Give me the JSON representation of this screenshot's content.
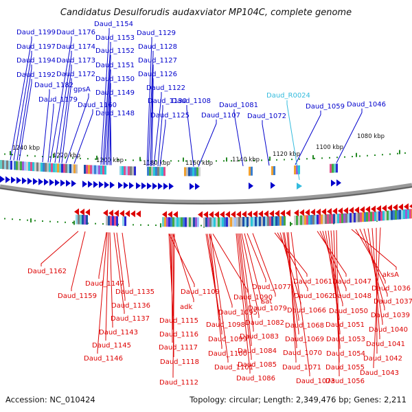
{
  "title": "Candidatus Desulforudis audaxviator MP104C, complete genome",
  "footer": {
    "accession": "Accession: NC_010424",
    "topology": "Topology: circular; Length: 2,349,476 bp; Genes: 2,211"
  },
  "colors": {
    "forward": "#0000cc",
    "reverse": "#dd0000",
    "rna": "#33bbdd",
    "backbone": "#888888",
    "tick": "#228822"
  },
  "ticks": [
    "1240 kbp",
    "1220 kbp",
    "1200 kbp",
    "1180 kbp",
    "1160 kbp",
    "1140 kbp",
    "1120 kbp",
    "1100 kbp",
    "1080 kbp"
  ],
  "forward_labels": [
    "Daud_1199",
    "Daud_1197",
    "Daud_1194",
    "Daud_1192",
    "Daud_1182",
    "Daud_1179",
    "Daud_1176",
    "Daud_1174",
    "Daud_1173",
    "Daud_1172",
    "gpsA",
    "Daud_1160",
    "Daud_1154",
    "Daud_1153",
    "Daud_1152",
    "Daud_1151",
    "Daud_1150",
    "Daud_1149",
    "Daud_1148",
    "Daud_1129",
    "Daud_1128",
    "Daud_1127",
    "Daud_1126",
    "Daud_1122",
    "Daud_1130",
    "Daud_1125",
    "Daud_1108",
    "Daud_1107",
    "Daud_1081",
    "Daud_1072",
    "Daud_1059",
    "Daud_1046"
  ],
  "rna_labels": [
    "Daud_R0024"
  ],
  "reverse_labels": [
    "Daud_1162",
    "Daud_1159",
    "Daud_1147",
    "Daud_1135",
    "Daud_1136",
    "Daud_1137",
    "Daud_1143",
    "Daud_1145",
    "Daud_1146",
    "Daud_1109",
    "adk",
    "Daud_1115",
    "Daud_1116",
    "Daud_1117",
    "Daud_1118",
    "Daud_1112",
    "Daud_1090",
    "Daud_1095",
    "Daud_1098",
    "Daud_1099",
    "Daud_1100",
    "Daud_1101",
    "Daud_1077",
    "sat",
    "Daud_1079",
    "Daud_1082",
    "Daud_1083",
    "Daud_1084",
    "Daud_1085",
    "Daud_1086",
    "Daud_1061",
    "Daud_1062",
    "Daud_1066",
    "Daud_1068",
    "Daud_1069",
    "Daud_1070",
    "Daud_1071",
    "Daud_1073",
    "Daud_1047",
    "Daud_1048",
    "Daud_1050",
    "Daud_1051",
    "Daud_1053",
    "Daud_1054",
    "Daud_1055",
    "Daud_1056",
    "aksA",
    "Daud_1036",
    "Daud_1037",
    "Daud_1039",
    "Daud_1040",
    "Daud_1041",
    "Daud_1042",
    "Daud_1043"
  ]
}
